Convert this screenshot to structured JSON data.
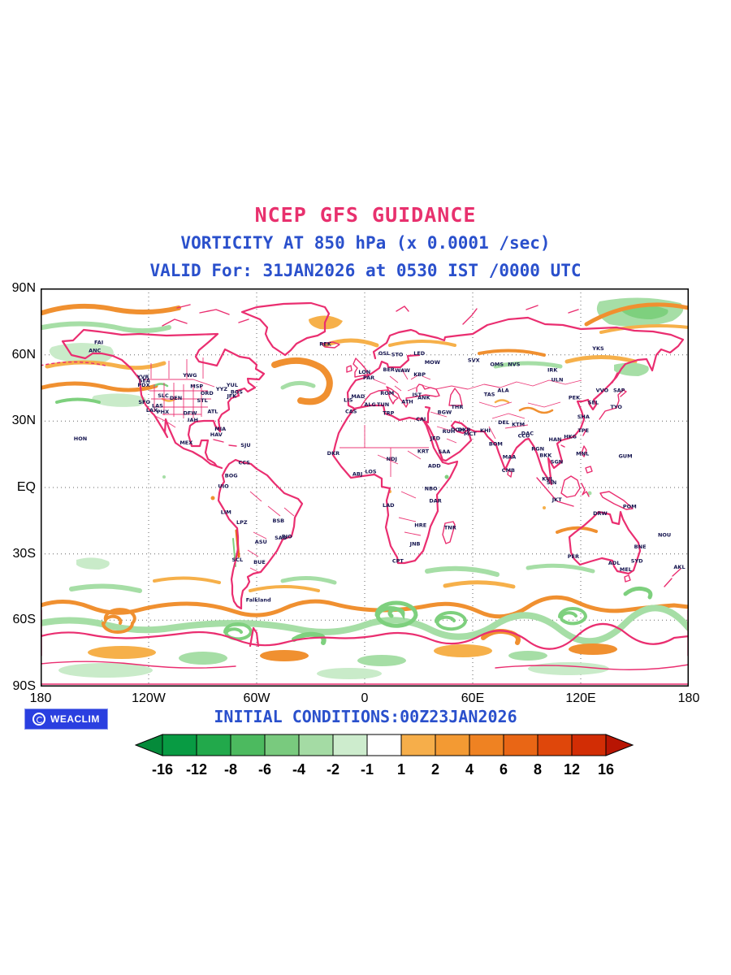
{
  "titles": {
    "line1": "NCEP GFS GUIDANCE",
    "line2": "VORTICITY AT 850 hPa (x 0.0001 /sec)",
    "line3": "VALID For: 31JAN2026 at 0530 IST /0000 UTC"
  },
  "colors": {
    "title_pink": "#e8316e",
    "heading_blue": "#2a50cc",
    "coastline": "#ea2e70"
  },
  "axes": {
    "y_ticks": [
      "90N",
      "60N",
      "30N",
      "EQ",
      "30S",
      "60S",
      "90S"
    ],
    "x_ticks": [
      "180",
      "120W",
      "60W",
      "0",
      "60E",
      "120E",
      "180"
    ]
  },
  "footer": {
    "logo_text": "WEACLIM",
    "initial_conditions": "INITIAL CONDITIONS:00Z23JAN2026"
  },
  "colorbar": {
    "labels": [
      "-16",
      "-12",
      "-8",
      "-6",
      "-4",
      "-2",
      "-1",
      "1",
      "2",
      "4",
      "6",
      "8",
      "12",
      "16"
    ],
    "segment_colors": [
      "#089b43",
      "#22a94b",
      "#4cba5f",
      "#79ca7e",
      "#a4dba4",
      "#cdeccd",
      "#ffffff",
      "#f6ae4a",
      "#f39a33",
      "#ef8222",
      "#e96615",
      "#df470b",
      "#d22d05"
    ],
    "arrow_left_color": "#058a3a",
    "arrow_right_color": "#b81503"
  },
  "stations": [
    [
      "ANC",
      -149.9,
      61.2
    ],
    [
      "FAI",
      -147.7,
      64.8
    ],
    [
      "SEA",
      -122.3,
      47.6
    ],
    [
      "PDX",
      -122.7,
      45.5
    ],
    [
      "SFO",
      -122.4,
      37.8
    ],
    [
      "LAX",
      -118.2,
      34.1
    ],
    [
      "LAS",
      -115.1,
      36.2
    ],
    [
      "PHX",
      -112.1,
      33.4
    ],
    [
      "SLC",
      -111.9,
      40.8
    ],
    [
      "DEN",
      -104.9,
      39.7
    ],
    [
      "MSP",
      -93.3,
      45.0
    ],
    [
      "ORD",
      -87.6,
      41.9
    ],
    [
      "STL",
      -90.2,
      38.6
    ],
    [
      "DFW",
      -97.0,
      32.8
    ],
    [
      "IAH",
      -95.4,
      29.8
    ],
    [
      "MIA",
      -80.2,
      25.8
    ],
    [
      "ATL",
      -84.4,
      33.7
    ],
    [
      "JFK",
      -73.8,
      40.6
    ],
    [
      "BOS",
      -71.1,
      42.4
    ],
    [
      "YYZ",
      -79.4,
      43.7
    ],
    [
      "YUL",
      -73.6,
      45.5
    ],
    [
      "YWG",
      -97.1,
      49.9
    ],
    [
      "YVR",
      -123.1,
      49.3
    ],
    [
      "MEX",
      -99.1,
      19.4
    ],
    [
      "HON",
      -157.9,
      21.3
    ],
    [
      "HAV",
      -82.4,
      23.1
    ],
    [
      "SJU",
      -66.1,
      18.4
    ],
    [
      "BOG",
      -74.1,
      4.6
    ],
    [
      "CCS",
      -66.9,
      10.5
    ],
    [
      "UIO",
      -78.5,
      -0.2
    ],
    [
      "LIM",
      -77.0,
      -12.0
    ],
    [
      "LPZ",
      -68.2,
      -16.5
    ],
    [
      "BSB",
      -47.9,
      -15.8
    ],
    [
      "RIO",
      -43.2,
      -22.9
    ],
    [
      "SAO",
      -46.6,
      -23.5
    ],
    [
      "ASU",
      -57.6,
      -25.3
    ],
    [
      "SCL",
      -70.7,
      -33.4
    ],
    [
      "BUE",
      -58.4,
      -34.6
    ],
    [
      "Falkland",
      -59.0,
      -51.7
    ],
    [
      "REK",
      -21.9,
      64.1
    ],
    [
      "LON",
      -0.1,
      51.5
    ],
    [
      "PAR",
      2.3,
      48.9
    ],
    [
      "MAD",
      -3.7,
      40.4
    ],
    [
      "LIS",
      -9.1,
      38.7
    ],
    [
      "ROM",
      12.5,
      41.9
    ],
    [
      "BER",
      13.4,
      52.5
    ],
    [
      "OSL",
      10.8,
      59.9
    ],
    [
      "STO",
      18.1,
      59.3
    ],
    [
      "WAW",
      21.0,
      52.2
    ],
    [
      "ATH",
      23.7,
      38.0
    ],
    [
      "IST",
      29.0,
      41.1
    ],
    [
      "MOW",
      37.6,
      55.8
    ],
    [
      "LED",
      30.3,
      59.9
    ],
    [
      "KBP",
      30.5,
      50.4
    ],
    [
      "CAS",
      -7.6,
      33.6
    ],
    [
      "ALG",
      3.0,
      36.7
    ],
    [
      "TUN",
      10.2,
      36.8
    ],
    [
      "TRP",
      13.2,
      32.9
    ],
    [
      "CAI",
      31.2,
      30.1
    ],
    [
      "DKR",
      -17.4,
      14.7
    ],
    [
      "ABJ",
      -4.0,
      5.3
    ],
    [
      "LOS",
      3.4,
      6.5
    ],
    [
      "NDJ",
      15.0,
      12.1
    ],
    [
      "KRT",
      32.5,
      15.6
    ],
    [
      "ADD",
      38.7,
      9.0
    ],
    [
      "NBO",
      36.8,
      -1.3
    ],
    [
      "DAR",
      39.3,
      -6.8
    ],
    [
      "LAD",
      13.2,
      -8.8
    ],
    [
      "HRE",
      31.0,
      -17.8
    ],
    [
      "JNB",
      28.0,
      -26.2
    ],
    [
      "CPT",
      18.4,
      -33.9
    ],
    [
      "TNR",
      47.5,
      -18.9
    ],
    [
      "ANK",
      32.9,
      39.9
    ],
    [
      "THR",
      51.4,
      35.7
    ],
    [
      "BGW",
      44.4,
      33.3
    ],
    [
      "JED",
      39.2,
      21.5
    ],
    [
      "RUH",
      46.7,
      24.6
    ],
    [
      "DOH",
      51.5,
      25.3
    ],
    [
      "DXB",
      55.3,
      25.3
    ],
    [
      "MCT",
      58.6,
      23.6
    ],
    [
      "SAA",
      44.2,
      15.4
    ],
    [
      "KHI",
      67.0,
      24.9
    ],
    [
      "DEL",
      77.2,
      28.6
    ],
    [
      "BOM",
      72.8,
      19.0
    ],
    [
      "MAA",
      80.3,
      13.1
    ],
    [
      "CCU",
      88.4,
      22.6
    ],
    [
      "CMB",
      79.8,
      6.9
    ],
    [
      "DAC",
      90.4,
      23.7
    ],
    [
      "KTM",
      85.3,
      27.7
    ],
    [
      "RGN",
      96.2,
      16.8
    ],
    [
      "BKK",
      100.5,
      13.8
    ],
    [
      "SGN",
      106.7,
      10.8
    ],
    [
      "HAN",
      105.8,
      21.0
    ],
    [
      "KUL",
      101.7,
      3.1
    ],
    [
      "SIN",
      103.8,
      1.4
    ],
    [
      "JKT",
      106.8,
      -6.2
    ],
    [
      "MNL",
      121.0,
      14.6
    ],
    [
      "HKG",
      114.2,
      22.3
    ],
    [
      "TPE",
      121.5,
      25.0
    ],
    [
      "SHA",
      121.5,
      31.2
    ],
    [
      "PEK",
      116.4,
      39.9
    ],
    [
      "SEL",
      127.0,
      37.6
    ],
    [
      "TYO",
      139.7,
      35.7
    ],
    [
      "SAP",
      141.3,
      43.1
    ],
    [
      "VVO",
      131.9,
      43.1
    ],
    [
      "YKS",
      129.7,
      62.0
    ],
    [
      "IRK",
      104.3,
      52.3
    ],
    [
      "ULN",
      106.9,
      47.9
    ],
    [
      "ALA",
      76.9,
      43.2
    ],
    [
      "TAS",
      69.3,
      41.3
    ],
    [
      "SVX",
      60.6,
      56.8
    ],
    [
      "OMS",
      73.4,
      55.0
    ],
    [
      "NVS",
      82.9,
      55.0
    ],
    [
      "GUM",
      144.8,
      13.5
    ],
    [
      "POM",
      147.2,
      -9.4
    ],
    [
      "DRW",
      130.8,
      -12.5
    ],
    [
      "PER",
      115.9,
      -31.9
    ],
    [
      "ADL",
      138.6,
      -34.9
    ],
    [
      "MEL",
      145.0,
      -37.8
    ],
    [
      "SYD",
      151.2,
      -33.9
    ],
    [
      "BNE",
      153.0,
      -27.5
    ],
    [
      "AKL",
      174.8,
      -36.8
    ],
    [
      "NOU",
      166.5,
      -22.3
    ]
  ],
  "chart_data": {
    "type": "heatmap",
    "title": "NCEP GFS GUIDANCE",
    "subtitle": "VORTICITY AT 850 hPa (x 0.0001 /sec)",
    "valid_line": "VALID For: 31JAN2026 at 0530 IST /0000 UTC",
    "initial_conditions": "INITIAL CONDITIONS:00Z23JAN2026",
    "variable": "850 hPa relative vorticity",
    "units": "x 0.0001 /sec",
    "projection": "equirectangular, global",
    "x_axis": {
      "ticks": [
        "180",
        "120W",
        "60W",
        "0",
        "60E",
        "120E",
        "180"
      ],
      "range_deg": [
        -180,
        180
      ]
    },
    "y_axis": {
      "ticks": [
        "90N",
        "60N",
        "30N",
        "EQ",
        "30S",
        "60S",
        "90S"
      ],
      "range_deg": [
        -90,
        90
      ]
    },
    "colorbar": {
      "levels": [
        -16,
        -12,
        -8,
        -6,
        -4,
        -2,
        -1,
        1,
        2,
        4,
        6,
        8,
        12,
        16
      ],
      "negative_shades": "greens",
      "neutral": "white",
      "positive_shades": "oranges to dark red"
    },
    "grid": "dotted lat/lon every 30/60 degrees",
    "legend_position": "bottom"
  }
}
